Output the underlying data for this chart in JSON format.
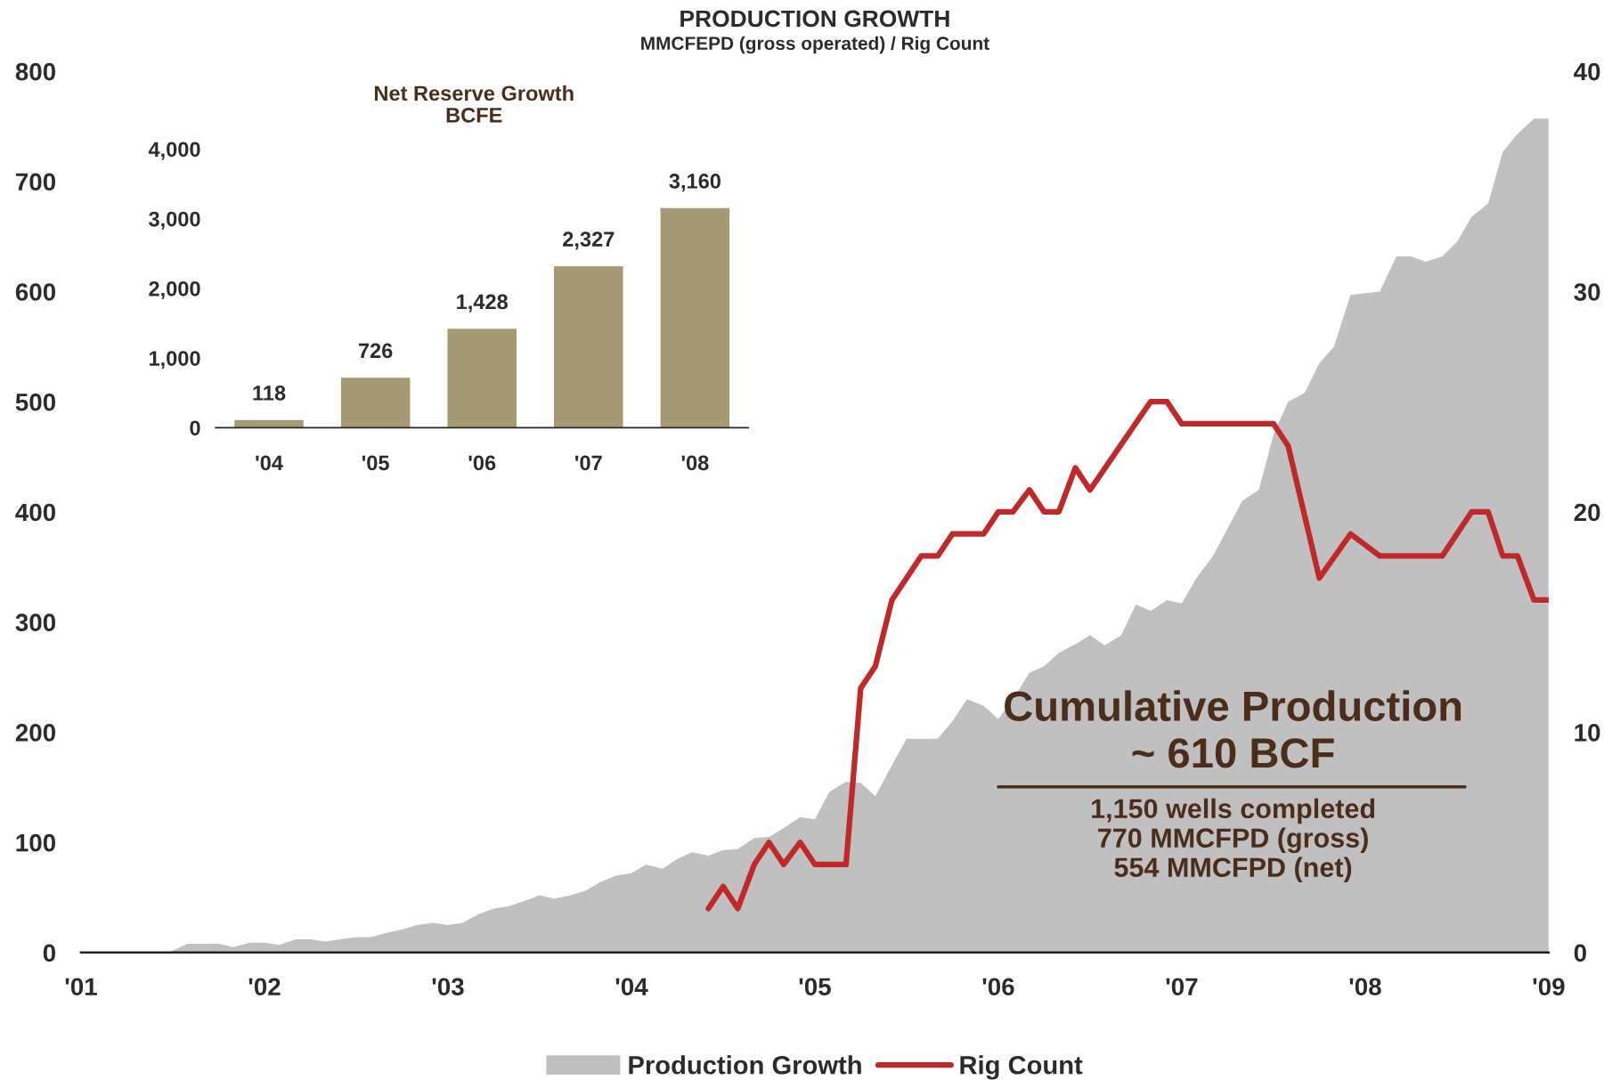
{
  "chart_data": [
    {
      "type": "area",
      "title": "PRODUCTION GROWTH",
      "subtitle": "MMCFEPD (gross operated) / Rig Count",
      "xlim": [
        2001,
        2009
      ],
      "xticks": [
        {
          "value": 2001,
          "label": "'01"
        },
        {
          "value": 2002,
          "label": "'02"
        },
        {
          "value": 2003,
          "label": "'03"
        },
        {
          "value": 2004,
          "label": "'04"
        },
        {
          "value": 2005,
          "label": "'05"
        },
        {
          "value": 2006,
          "label": "'06"
        },
        {
          "value": 2007,
          "label": "'07"
        },
        {
          "value": 2008,
          "label": "'08"
        },
        {
          "value": 2009,
          "label": "'09"
        }
      ],
      "ylim": [
        0,
        800
      ],
      "yticks": [
        0,
        100,
        200,
        300,
        400,
        500,
        600,
        700,
        800
      ],
      "y2lim": [
        0,
        40
      ],
      "y2ticks": [
        0,
        10,
        20,
        30,
        40
      ],
      "legend": "bottom",
      "grid": false,
      "annotations": [
        "Cumulative Production\n~ 610 BCF",
        "1,150 wells completed\n770 MMCFPD (gross)\n554 MMCFPD (net)"
      ],
      "series": [
        {
          "name": "Production Growth",
          "type": "area",
          "color": "#c0c0c0",
          "x": [
            2001.0,
            2001.48,
            2001.58,
            2001.75,
            2001.83,
            2001.92,
            2002.0,
            2002.08,
            2002.17,
            2002.25,
            2002.33,
            2002.5,
            2002.58,
            2002.67,
            2002.75,
            2002.83,
            2002.92,
            2003.0,
            2003.08,
            2003.17,
            2003.25,
            2003.33,
            2003.42,
            2003.5,
            2003.58,
            2003.67,
            2003.75,
            2003.83,
            2003.92,
            2004.0,
            2004.08,
            2004.17,
            2004.25,
            2004.33,
            2004.42,
            2004.5,
            2004.58,
            2004.67,
            2004.75,
            2004.83,
            2004.92,
            2005.0,
            2005.08,
            2005.17,
            2005.25,
            2005.33,
            2005.42,
            2005.5,
            2005.58,
            2005.67,
            2005.75,
            2005.83,
            2005.92,
            2006.0,
            2006.08,
            2006.17,
            2006.25,
            2006.33,
            2006.42,
            2006.5,
            2006.58,
            2006.67,
            2006.75,
            2006.83,
            2006.92,
            2007.0,
            2007.08,
            2007.17,
            2007.25,
            2007.33,
            2007.42,
            2007.5,
            2007.58,
            2007.67,
            2007.75,
            2007.83,
            2007.92,
            2008.08,
            2008.17,
            2008.25,
            2008.33,
            2008.42,
            2008.5,
            2008.58,
            2008.67,
            2008.75,
            2008.83,
            2008.92,
            2009.0
          ],
          "values": [
            0,
            0,
            8,
            8,
            5,
            9,
            9,
            7,
            12,
            12,
            10,
            14,
            14,
            18,
            21,
            25,
            27,
            25,
            27,
            35,
            40,
            42,
            47,
            52,
            49,
            52,
            56,
            64,
            70,
            72,
            80,
            76,
            85,
            91,
            88,
            93,
            94,
            104,
            105,
            113,
            123,
            121,
            146,
            155,
            154,
            142,
            170,
            194,
            194,
            194,
            210,
            230,
            224,
            212,
            230,
            254,
            260,
            272,
            280,
            288,
            279,
            288,
            316,
            310,
            320,
            317,
            340,
            360,
            385,
            410,
            420,
            470,
            500,
            508,
            535,
            550,
            597,
            600,
            632,
            632,
            627,
            632,
            645,
            668,
            680,
            727,
            743,
            757,
            757
          ]
        },
        {
          "name": "Rig Count",
          "type": "line",
          "axis": "y2",
          "color": "#c0282a",
          "x": [
            2004.42,
            2004.5,
            2004.58,
            2004.67,
            2004.75,
            2004.83,
            2004.92,
            2005.0,
            2005.08,
            2005.17,
            2005.25,
            2005.33,
            2005.42,
            2005.5,
            2005.58,
            2005.67,
            2005.75,
            2005.92,
            2006.0,
            2006.08,
            2006.17,
            2006.25,
            2006.33,
            2006.42,
            2006.5,
            2006.83,
            2006.92,
            2007.0,
            2007.5,
            2007.58,
            2007.75,
            2007.92,
            2008.08,
            2008.42,
            2008.58,
            2008.67,
            2008.75,
            2008.83,
            2008.92,
            2009.0
          ],
          "values": [
            2,
            3,
            2,
            4,
            5,
            4,
            5,
            4,
            4,
            4,
            12,
            13,
            16,
            17,
            18,
            18,
            19,
            19,
            20,
            20,
            21,
            20,
            20,
            22,
            21,
            25,
            25,
            24,
            24,
            23,
            17,
            19,
            18,
            18,
            20,
            20,
            18,
            18,
            16,
            16
          ]
        }
      ]
    },
    {
      "type": "bar",
      "title": "Net Reserve Growth\nBCFE",
      "categories": [
        "'04",
        "'05",
        "'06",
        "'07",
        "'08"
      ],
      "values": [
        118,
        726,
        1428,
        2327,
        3160
      ],
      "color": "#a69a75",
      "ylim": [
        0,
        4000
      ],
      "yticks": [
        {
          "value": 0,
          "label": "0"
        },
        {
          "value": 1000,
          "label": "1,000"
        },
        {
          "value": 2000,
          "label": "2,000"
        },
        {
          "value": 3000,
          "label": "3,000"
        },
        {
          "value": 4000,
          "label": "4,000"
        }
      ],
      "data_labels": true,
      "value_labels": [
        "118",
        "726",
        "1,428",
        "2,327",
        "3,160"
      ]
    }
  ]
}
